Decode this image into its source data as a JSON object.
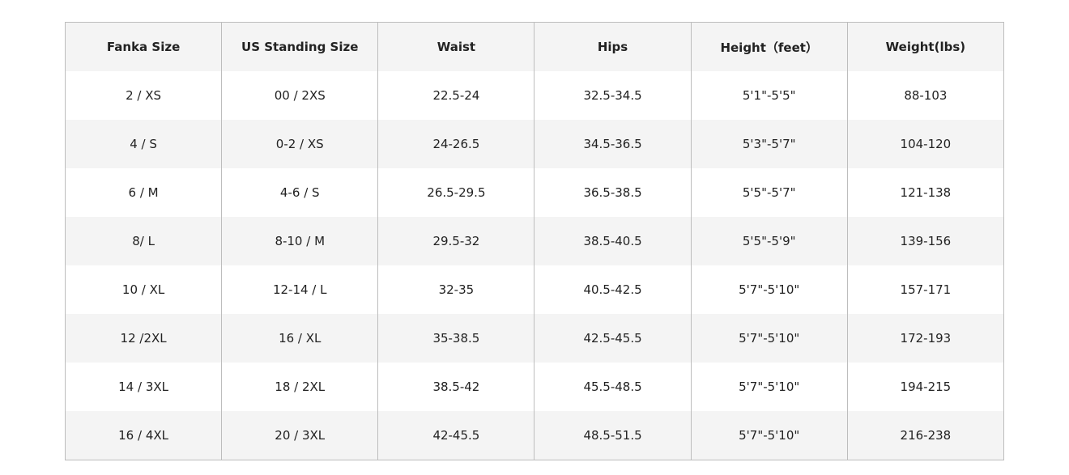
{
  "headers": [
    "Fanka Size",
    "US Standing Size",
    "Waist",
    "Hips",
    "Height（feet）",
    "Weight(lbs)"
  ],
  "rows": [
    [
      "2 / XS",
      "00 / 2XS",
      "22.5-24",
      "32.5-34.5",
      "5'1\"-5'5\"",
      "88-103"
    ],
    [
      "4 / S",
      "0-2 / XS",
      "24-26.5",
      "34.5-36.5",
      "5'3\"-5'7\"",
      "104-120"
    ],
    [
      "6 / M",
      "4-6 / S",
      "26.5-29.5",
      "36.5-38.5",
      "5'5\"-5'7\"",
      "121-138"
    ],
    [
      "8/ L",
      "8-10 / M",
      "29.5-32",
      "38.5-40.5",
      "5'5\"-5'9\"",
      "139-156"
    ],
    [
      "10 / XL",
      "12-14 / L",
      "32-35",
      "40.5-42.5",
      "5'7\"-5'10\"",
      "157-171"
    ],
    [
      "12 /2XL",
      "16 / XL",
      "35-38.5",
      "42.5-45.5",
      "5'7\"-5'10\"",
      "172-193"
    ],
    [
      "14 / 3XL",
      "18 / 2XL",
      "38.5-42",
      "45.5-48.5",
      "5'7\"-5'10\"",
      "194-215"
    ],
    [
      "16 / 4XL",
      "20 / 3XL",
      "42-45.5",
      "48.5-51.5",
      "5'7\"-5'10\"",
      "216-238"
    ]
  ]
}
